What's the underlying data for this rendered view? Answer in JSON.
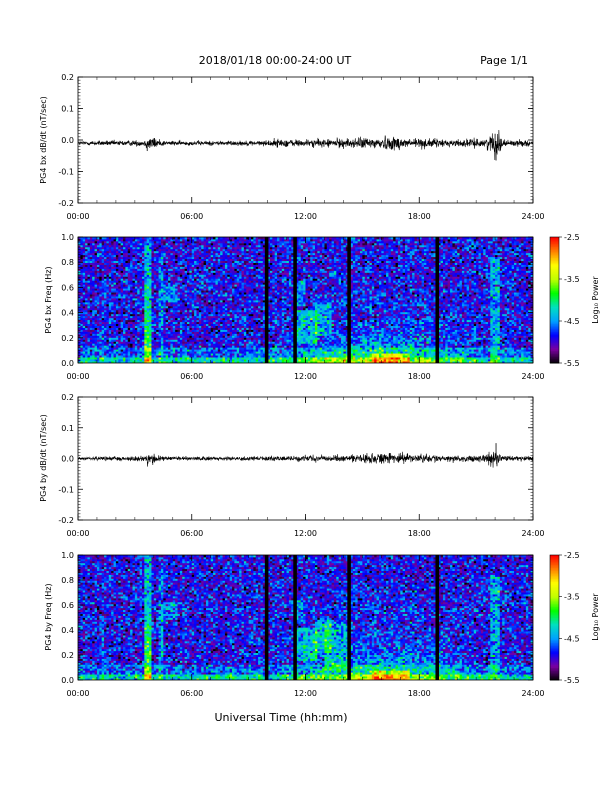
{
  "header": {
    "title": "2018/01/18  00:00-24:00 UT",
    "page": "Page 1/1"
  },
  "footer": {
    "xlabel": "Universal Time (hh:mm)"
  },
  "colorbar": {
    "label": "Log₁₀ Power",
    "ticks": [
      "-2.5",
      "-3.5",
      "-4.5",
      "-5.5"
    ],
    "range": [
      -5.5,
      -2.5
    ],
    "colors": [
      "#000000",
      "#7a00a0",
      "#0000ff",
      "#00a0ff",
      "#00e0c0",
      "#00ff00",
      "#c0ff00",
      "#ffff00",
      "#ff8000",
      "#ff0000"
    ]
  },
  "chart_data": [
    {
      "type": "line",
      "panel": "PG4 bx dB/dt",
      "ylabel": "PG4 bx dB/dt (nT/sec)",
      "xlim": [
        0,
        24
      ],
      "ylim": [
        -0.2,
        0.2
      ],
      "x_ticks": [
        "00:00",
        "06:00",
        "12:00",
        "18:00",
        "24:00"
      ],
      "y_ticks": [
        "0.2",
        "0.1",
        "0.0",
        "-0.1",
        "-0.2"
      ],
      "baseline": -0.01,
      "noise": [
        {
          "x": 0.0,
          "amp": 0.006
        },
        {
          "x": 3.5,
          "amp": 0.008
        },
        {
          "x": 3.7,
          "amp": 0.02
        },
        {
          "x": 4.3,
          "amp": 0.012
        },
        {
          "x": 4.6,
          "amp": 0.006
        },
        {
          "x": 9.9,
          "amp": 0.007
        },
        {
          "x": 10.3,
          "amp": 0.012
        },
        {
          "x": 12.0,
          "amp": 0.01
        },
        {
          "x": 14.5,
          "amp": 0.014
        },
        {
          "x": 16.5,
          "amp": 0.02
        },
        {
          "x": 17.5,
          "amp": 0.016
        },
        {
          "x": 19.5,
          "amp": 0.01
        },
        {
          "x": 21.5,
          "amp": 0.012
        },
        {
          "x": 22.1,
          "amp": 0.04
        },
        {
          "x": 22.4,
          "amp": 0.01
        },
        {
          "x": 24.0,
          "amp": 0.008
        }
      ],
      "spikes": [
        {
          "x": 22.05,
          "y": -0.065
        },
        {
          "x": 22.0,
          "y": 0.02
        },
        {
          "x": 3.65,
          "y": -0.035
        }
      ]
    },
    {
      "type": "heatmap",
      "panel": "PG4 bx spectrogram",
      "ylabel": "PG4 bx Freq (Hz)",
      "xlim": [
        0,
        24
      ],
      "ylim": [
        0.0,
        1.0
      ],
      "x_ticks": [
        "00:00",
        "06:00",
        "12:00",
        "18:00",
        "24:00"
      ],
      "y_ticks": [
        "1.0",
        "0.8",
        "0.6",
        "0.4",
        "0.2",
        "0.0"
      ],
      "data_gaps_hours": [
        9.95,
        11.45,
        14.3,
        18.95
      ],
      "zlabel": "Log₁₀ Power",
      "zlim": [
        -5.5,
        -2.5
      ]
    },
    {
      "type": "line",
      "panel": "PG4 by dB/dt",
      "ylabel": "PG4 by dB/dt (nT/sec)",
      "xlim": [
        0,
        24
      ],
      "ylim": [
        -0.2,
        0.2
      ],
      "x_ticks": [
        "00:00",
        "06:00",
        "12:00",
        "18:00",
        "24:00"
      ],
      "y_ticks": [
        "0.2",
        "0.1",
        "0.0",
        "-0.1",
        "-0.2"
      ],
      "baseline": 0.0,
      "noise": [
        {
          "x": 0.0,
          "amp": 0.005
        },
        {
          "x": 3.5,
          "amp": 0.007
        },
        {
          "x": 3.7,
          "amp": 0.018
        },
        {
          "x": 4.3,
          "amp": 0.01
        },
        {
          "x": 4.6,
          "amp": 0.005
        },
        {
          "x": 9.9,
          "amp": 0.006
        },
        {
          "x": 12.0,
          "amp": 0.008
        },
        {
          "x": 14.5,
          "amp": 0.01
        },
        {
          "x": 16.5,
          "amp": 0.016
        },
        {
          "x": 17.5,
          "amp": 0.013
        },
        {
          "x": 19.5,
          "amp": 0.008
        },
        {
          "x": 21.5,
          "amp": 0.01
        },
        {
          "x": 22.1,
          "amp": 0.03
        },
        {
          "x": 22.4,
          "amp": 0.008
        },
        {
          "x": 24.0,
          "amp": 0.006
        }
      ],
      "spikes": [
        {
          "x": 22.05,
          "y": 0.05
        },
        {
          "x": 22.1,
          "y": -0.025
        }
      ]
    },
    {
      "type": "heatmap",
      "panel": "PG4 by spectrogram",
      "ylabel": "PG4 by Freq (Hz)",
      "xlim": [
        0,
        24
      ],
      "ylim": [
        0.0,
        1.0
      ],
      "x_ticks": [
        "00:00",
        "06:00",
        "12:00",
        "18:00",
        "24:00"
      ],
      "y_ticks": [
        "1.0",
        "0.8",
        "0.6",
        "0.4",
        "0.2",
        "0.0"
      ],
      "data_gaps_hours": [
        9.95,
        11.45,
        14.3,
        18.95
      ],
      "zlabel": "Log₁₀ Power",
      "zlim": [
        -5.5,
        -2.5
      ]
    }
  ]
}
